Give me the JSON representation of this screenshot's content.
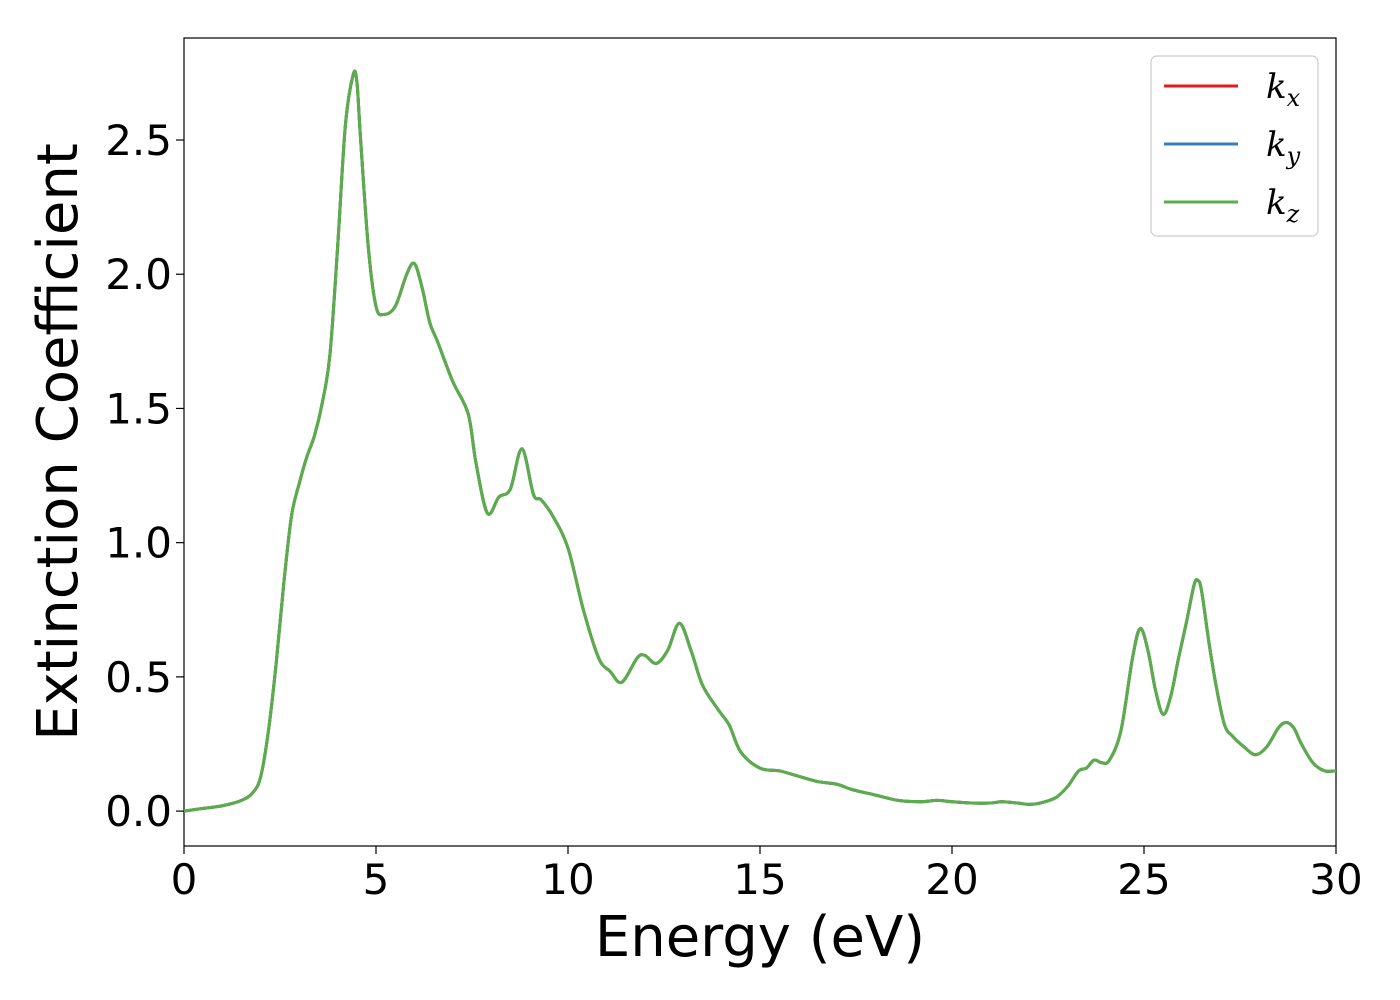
{
  "chart_data": {
    "type": "line",
    "title": "",
    "xlabel": "Energy (eV)",
    "ylabel": "Extinction Coefficient",
    "xlim": [
      0,
      30
    ],
    "ylim": [
      -0.13,
      2.88
    ],
    "xticks": [
      0,
      5,
      10,
      15,
      20,
      25,
      30
    ],
    "xtick_labels": [
      "0",
      "5",
      "10",
      "15",
      "20",
      "25",
      "30"
    ],
    "yticks": [
      0.0,
      0.5,
      1.0,
      1.5,
      2.0,
      2.5
    ],
    "ytick_labels": [
      "0.0",
      "0.5",
      "1.0",
      "1.5",
      "2.0",
      "2.5"
    ],
    "grid": false,
    "legend_position": "top-right",
    "x": [
      0,
      0.5,
      1.0,
      1.5,
      1.8,
      2.0,
      2.2,
      2.4,
      2.6,
      2.8,
      3.0,
      3.2,
      3.4,
      3.6,
      3.8,
      4.0,
      4.2,
      4.4,
      4.5,
      4.6,
      4.8,
      5.0,
      5.2,
      5.5,
      5.8,
      6.0,
      6.2,
      6.4,
      6.6,
      7.0,
      7.4,
      7.6,
      7.9,
      8.2,
      8.5,
      8.8,
      9.1,
      9.3,
      9.6,
      10.0,
      10.4,
      10.8,
      11.1,
      11.4,
      11.8,
      12.0,
      12.3,
      12.6,
      12.9,
      13.2,
      13.5,
      13.9,
      14.2,
      14.5,
      15.0,
      15.5,
      16.0,
      16.5,
      17.0,
      17.4,
      18.0,
      18.6,
      19.2,
      19.6,
      20.0,
      20.5,
      21.0,
      21.3,
      21.7,
      22.0,
      22.3,
      22.7,
      23.0,
      23.3,
      23.5,
      23.7,
      23.9,
      24.1,
      24.4,
      24.7,
      24.9,
      25.1,
      25.3,
      25.5,
      25.7,
      25.9,
      26.1,
      26.3,
      26.4,
      26.5,
      26.7,
      26.9,
      27.1,
      27.3,
      27.6,
      27.9,
      28.2,
      28.5,
      28.7,
      28.9,
      29.1,
      29.4,
      29.7,
      30.0
    ],
    "series": [
      {
        "name": "k_x",
        "color": "#e41a1c",
        "values": [
          0.0,
          0.01,
          0.02,
          0.04,
          0.07,
          0.13,
          0.3,
          0.55,
          0.85,
          1.1,
          1.22,
          1.32,
          1.4,
          1.52,
          1.7,
          2.1,
          2.55,
          2.74,
          2.72,
          2.5,
          2.1,
          1.88,
          1.85,
          1.88,
          2.0,
          2.04,
          1.95,
          1.82,
          1.75,
          1.6,
          1.48,
          1.3,
          1.11,
          1.17,
          1.2,
          1.35,
          1.18,
          1.16,
          1.1,
          0.98,
          0.75,
          0.57,
          0.52,
          0.48,
          0.57,
          0.58,
          0.55,
          0.6,
          0.7,
          0.6,
          0.47,
          0.38,
          0.32,
          0.22,
          0.16,
          0.15,
          0.13,
          0.11,
          0.1,
          0.08,
          0.06,
          0.04,
          0.035,
          0.04,
          0.035,
          0.03,
          0.03,
          0.035,
          0.03,
          0.025,
          0.03,
          0.05,
          0.09,
          0.15,
          0.16,
          0.19,
          0.18,
          0.19,
          0.3,
          0.57,
          0.68,
          0.6,
          0.45,
          0.36,
          0.43,
          0.57,
          0.7,
          0.84,
          0.86,
          0.82,
          0.62,
          0.45,
          0.32,
          0.28,
          0.24,
          0.21,
          0.24,
          0.31,
          0.33,
          0.31,
          0.25,
          0.18,
          0.15,
          0.15
        ]
      },
      {
        "name": "k_y",
        "color": "#377eb8",
        "values": [
          0.0,
          0.01,
          0.02,
          0.04,
          0.07,
          0.13,
          0.3,
          0.55,
          0.85,
          1.1,
          1.22,
          1.32,
          1.4,
          1.52,
          1.7,
          2.1,
          2.55,
          2.74,
          2.72,
          2.5,
          2.1,
          1.88,
          1.85,
          1.88,
          2.0,
          2.04,
          1.95,
          1.82,
          1.75,
          1.6,
          1.48,
          1.3,
          1.11,
          1.17,
          1.2,
          1.35,
          1.18,
          1.16,
          1.1,
          0.98,
          0.75,
          0.57,
          0.52,
          0.48,
          0.57,
          0.58,
          0.55,
          0.6,
          0.7,
          0.6,
          0.47,
          0.38,
          0.32,
          0.22,
          0.16,
          0.15,
          0.13,
          0.11,
          0.1,
          0.08,
          0.06,
          0.04,
          0.035,
          0.04,
          0.035,
          0.03,
          0.03,
          0.035,
          0.03,
          0.025,
          0.03,
          0.05,
          0.09,
          0.15,
          0.16,
          0.19,
          0.18,
          0.19,
          0.3,
          0.57,
          0.68,
          0.6,
          0.45,
          0.36,
          0.43,
          0.57,
          0.7,
          0.84,
          0.86,
          0.82,
          0.62,
          0.45,
          0.32,
          0.28,
          0.24,
          0.21,
          0.24,
          0.31,
          0.33,
          0.31,
          0.25,
          0.18,
          0.15,
          0.15
        ]
      },
      {
        "name": "k_z",
        "color": "#5aae4a",
        "values": [
          0.0,
          0.01,
          0.02,
          0.04,
          0.07,
          0.13,
          0.3,
          0.55,
          0.85,
          1.1,
          1.22,
          1.32,
          1.4,
          1.52,
          1.7,
          2.1,
          2.55,
          2.74,
          2.72,
          2.5,
          2.1,
          1.88,
          1.85,
          1.88,
          2.0,
          2.04,
          1.95,
          1.82,
          1.75,
          1.6,
          1.48,
          1.3,
          1.11,
          1.17,
          1.2,
          1.35,
          1.18,
          1.16,
          1.1,
          0.98,
          0.75,
          0.57,
          0.52,
          0.48,
          0.57,
          0.58,
          0.55,
          0.6,
          0.7,
          0.6,
          0.47,
          0.38,
          0.32,
          0.22,
          0.16,
          0.15,
          0.13,
          0.11,
          0.1,
          0.08,
          0.06,
          0.04,
          0.035,
          0.04,
          0.035,
          0.03,
          0.03,
          0.035,
          0.03,
          0.025,
          0.03,
          0.05,
          0.09,
          0.15,
          0.16,
          0.19,
          0.18,
          0.19,
          0.3,
          0.57,
          0.68,
          0.6,
          0.45,
          0.36,
          0.43,
          0.57,
          0.7,
          0.84,
          0.86,
          0.82,
          0.62,
          0.45,
          0.32,
          0.28,
          0.24,
          0.21,
          0.24,
          0.31,
          0.33,
          0.31,
          0.25,
          0.18,
          0.15,
          0.15
        ]
      }
    ],
    "legend": [
      {
        "symbol": "k",
        "subscript": "x",
        "color": "#e41a1c"
      },
      {
        "symbol": "k",
        "subscript": "y",
        "color": "#377eb8"
      },
      {
        "symbol": "k",
        "subscript": "z",
        "color": "#5aae4a"
      }
    ]
  }
}
